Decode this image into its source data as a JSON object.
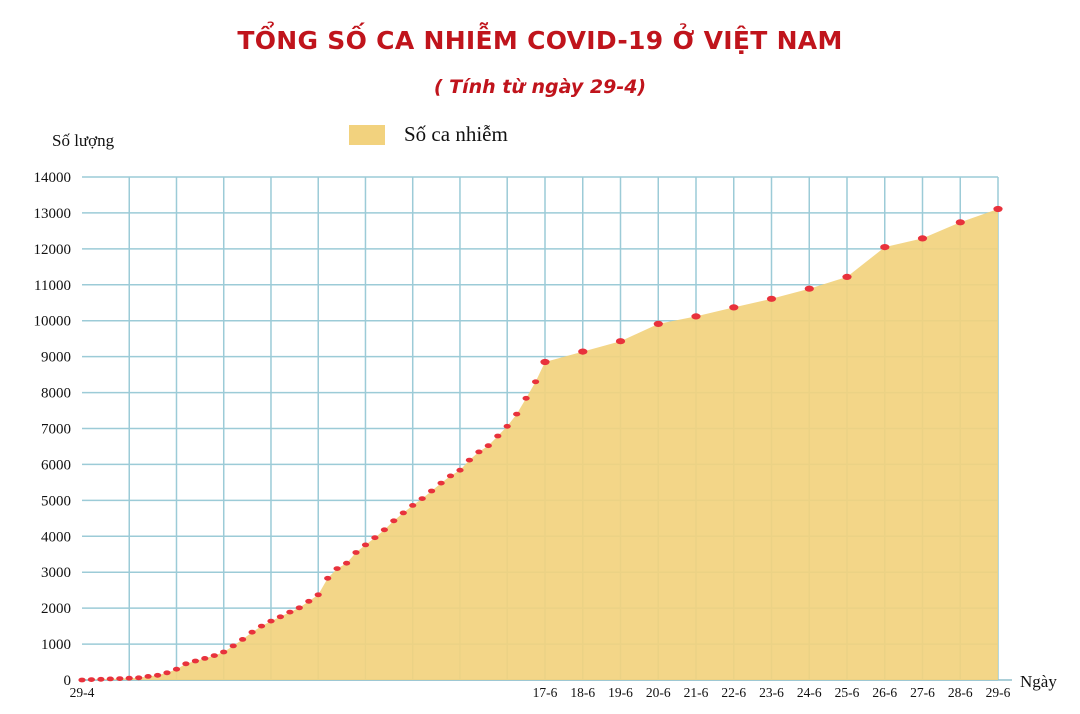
{
  "title": "TỔNG SỐ CA NHIỄM COVID-19 Ở VIỆT NAM",
  "subtitle": "( Tính từ ngày 29-4)",
  "colors": {
    "title": "#c0141c",
    "area": "#f2d27e",
    "marker": "#e8323c",
    "grid": "#9ccbd7"
  },
  "chart_data": {
    "type": "area",
    "ylabel": "Số lượng",
    "xlabel": "Ngày",
    "legend": {
      "label": "Số ca nhiễm",
      "position": "top-center"
    },
    "ylim": [
      0,
      14000
    ],
    "yticks": [
      0,
      1000,
      2000,
      3000,
      4000,
      5000,
      6000,
      7000,
      8000,
      9000,
      10000,
      11000,
      12000,
      13000,
      14000
    ],
    "grid": true,
    "x_tick_labels": [
      "29-4",
      "17-6",
      "18-6",
      "19-6",
      "20-6",
      "21-6",
      "22-6",
      "23-6",
      "24-6",
      "25-6",
      "26-6",
      "27-6",
      "28-6",
      "29-6"
    ],
    "series": [
      {
        "name": "Số ca nhiễm",
        "x": [
          "29-4",
          "30-4",
          "1-5",
          "2-5",
          "3-5",
          "4-5",
          "5-5",
          "6-5",
          "7-5",
          "8-5",
          "9-5",
          "10-5",
          "11-5",
          "12-5",
          "13-5",
          "14-5",
          "15-5",
          "16-5",
          "17-5",
          "18-5",
          "19-5",
          "20-5",
          "21-5",
          "22-5",
          "23-5",
          "24-5",
          "25-5",
          "26-5",
          "27-5",
          "28-5",
          "29-5",
          "30-5",
          "31-5",
          "1-6",
          "2-6",
          "3-6",
          "4-6",
          "5-6",
          "6-6",
          "7-6",
          "8-6",
          "9-6",
          "10-6",
          "11-6",
          "12-6",
          "13-6",
          "14-6",
          "15-6",
          "16-6",
          "17-6",
          "18-6",
          "19-6",
          "20-6",
          "21-6",
          "22-6",
          "23-6",
          "24-6",
          "25-6",
          "26-6",
          "27-6",
          "28-6",
          "29-6"
        ],
        "values": [
          0,
          10,
          20,
          30,
          40,
          50,
          60,
          100,
          130,
          200,
          300,
          450,
          530,
          600,
          680,
          780,
          950,
          1130,
          1330,
          1500,
          1640,
          1760,
          1890,
          2010,
          2190,
          2370,
          2830,
          3100,
          3250,
          3550,
          3760,
          3960,
          4180,
          4430,
          4650,
          4860,
          5050,
          5260,
          5480,
          5680,
          5840,
          6120,
          6350,
          6520,
          6790,
          7060,
          7400,
          7840,
          8300,
          8850,
          9140,
          9430,
          9910,
          10120,
          10370,
          10610,
          10890,
          11220,
          12050,
          12290,
          12740,
          13110
        ]
      }
    ]
  }
}
